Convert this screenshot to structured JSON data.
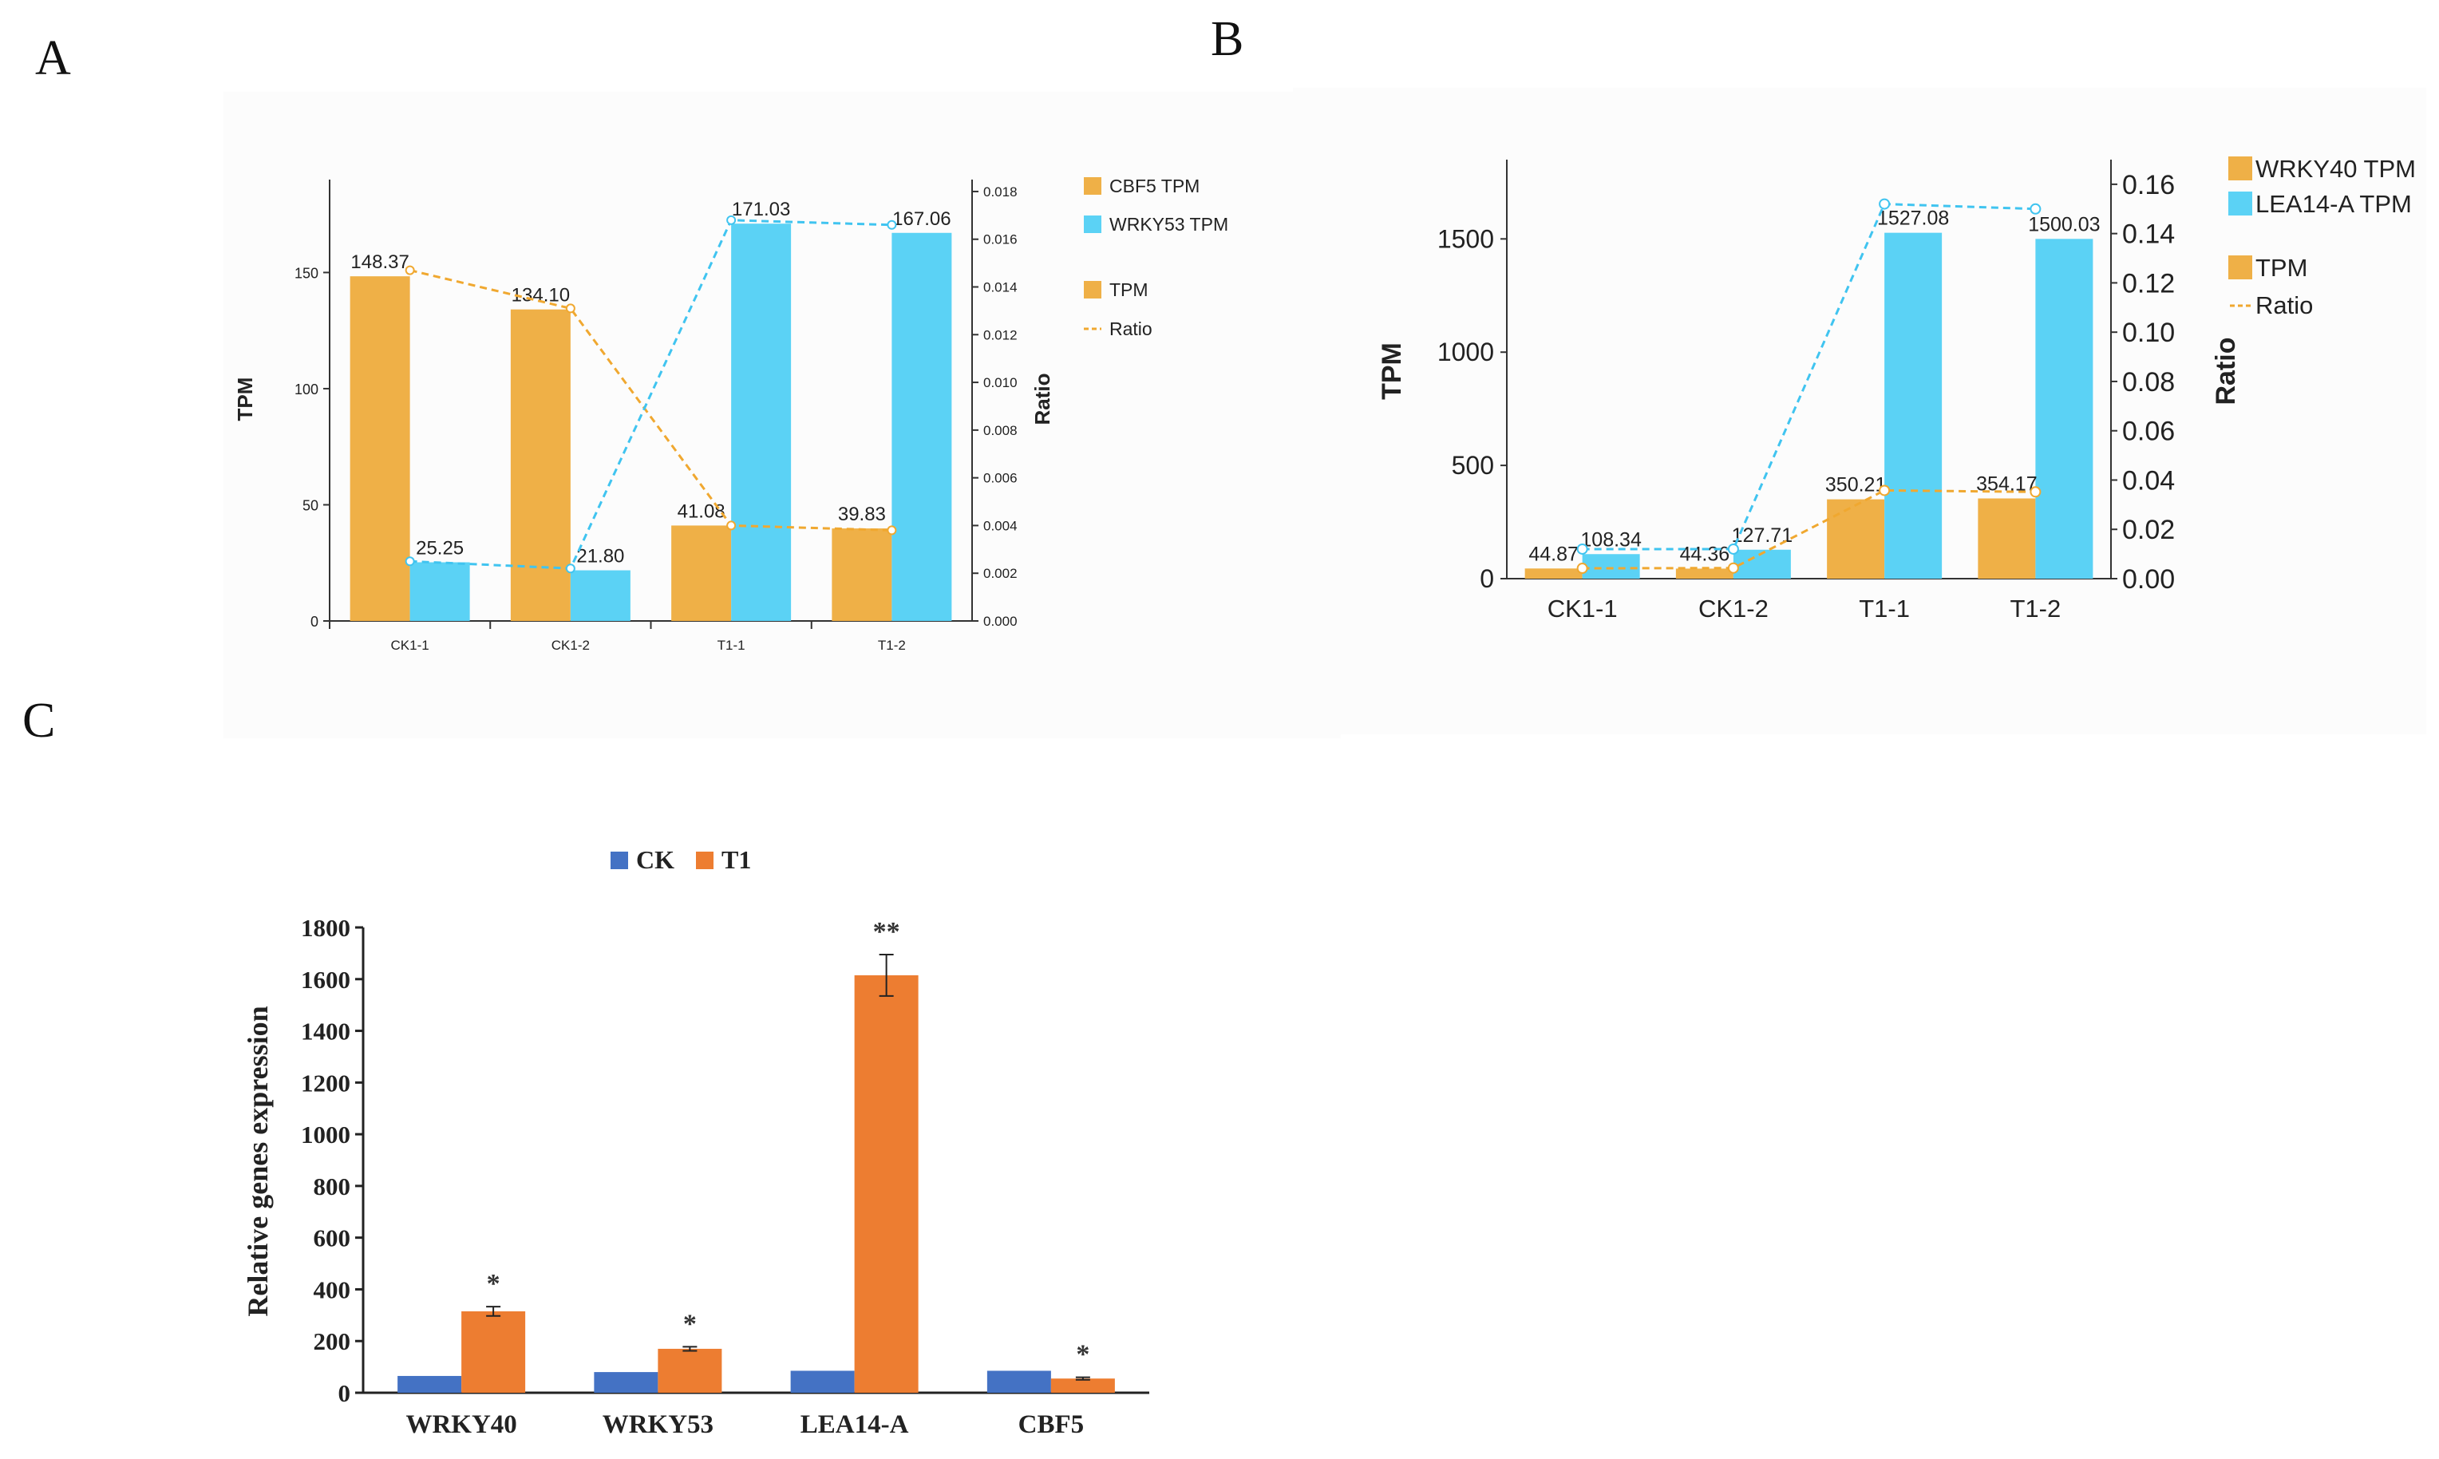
{
  "panels": {
    "a": "A",
    "b": "B",
    "c": "C"
  },
  "colors": {
    "orange_a": "#efb047",
    "cyan_a": "#5bd2f5",
    "blue_c": "#4472c4",
    "orange_c": "#ed7d31"
  },
  "chart_data": [
    {
      "panel": "A",
      "type": "bar",
      "categories": [
        "CK1-1",
        "CK1-2",
        "T1-1",
        "T1-2"
      ],
      "series": [
        {
          "name": "CBF5 TPM",
          "values": [
            148.37,
            134.1,
            41.08,
            39.83
          ],
          "value_labels": [
            "148.37",
            "134.10",
            "41.08",
            "39.83"
          ]
        },
        {
          "name": "WRKY53 TPM",
          "values": [
            25.25,
            21.8,
            171.03,
            167.06
          ],
          "value_labels": [
            "25.25",
            "21.80",
            "171.03",
            "167.06"
          ]
        }
      ],
      "ratio_lines": {
        "first_series": [
          0.0147,
          0.0131,
          0.004,
          0.0038
        ],
        "second_series": [
          0.0025,
          0.0022,
          0.0168,
          0.0166
        ]
      },
      "legend": [
        "CBF5 TPM",
        "WRKY53 TPM",
        "TPM",
        "Ratio"
      ],
      "ylabel": "TPM",
      "y2label": "Ratio",
      "ylim": [
        0,
        190
      ],
      "y2lim": [
        0,
        0.0185
      ],
      "yticks": [
        "0",
        "50",
        "100",
        "150"
      ],
      "y2ticks": [
        "0.000",
        "0.002",
        "0.004",
        "0.006",
        "0.008",
        "0.010",
        "0.012",
        "0.014",
        "0.016",
        "0.018"
      ],
      "legend_position": "right"
    },
    {
      "panel": "B",
      "type": "bar",
      "categories": [
        "CK1-1",
        "CK1-2",
        "T1-1",
        "T1-2"
      ],
      "series": [
        {
          "name": "WRKY40 TPM",
          "values": [
            44.87,
            44.36,
            350.21,
            354.17
          ],
          "value_labels": [
            "44.87",
            "44.36",
            "350.21",
            "354.17"
          ]
        },
        {
          "name": "LEA14-A TPM",
          "values": [
            108.34,
            127.71,
            1527.08,
            1500.03
          ],
          "value_labels": [
            "108.34",
            "127.71",
            "1527.08",
            "1500.03"
          ]
        }
      ],
      "ratio_lines": {
        "first_series": [
          0.0042,
          0.0043,
          0.0358,
          0.0352
        ],
        "second_series": [
          0.012,
          0.012,
          0.152,
          0.15
        ]
      },
      "legend": [
        "WRKY40 TPM",
        "LEA14-A TPM",
        "TPM",
        "Ratio"
      ],
      "ylabel": "TPM",
      "y2label": "Ratio",
      "ylim": [
        0,
        1850
      ],
      "y2lim": [
        0,
        0.17
      ],
      "yticks": [
        "0",
        "500",
        "1000",
        "1500"
      ],
      "y2ticks": [
        "0.00",
        "0.02",
        "0.04",
        "0.06",
        "0.08",
        "0.10",
        "0.12",
        "0.14",
        "0.16"
      ],
      "legend_position": "right"
    },
    {
      "panel": "C",
      "type": "bar",
      "categories": [
        "WRKY40",
        "WRKY53",
        "LEA14-A",
        "CBF5"
      ],
      "series": [
        {
          "name": "CK",
          "values": [
            65,
            80,
            85,
            85
          ]
        },
        {
          "name": "T1",
          "values": [
            315,
            170,
            1615,
            55
          ],
          "errors": [
            18,
            8,
            80,
            5
          ],
          "significance": [
            "*",
            "*",
            "**",
            "*"
          ]
        }
      ],
      "ylabel": "Relative genes expression",
      "ylim": [
        0,
        1800
      ],
      "yticks": [
        "0",
        "200",
        "400",
        "600",
        "800",
        "1000",
        "1200",
        "1400",
        "1600",
        "1800"
      ],
      "legend_position": "top"
    }
  ]
}
